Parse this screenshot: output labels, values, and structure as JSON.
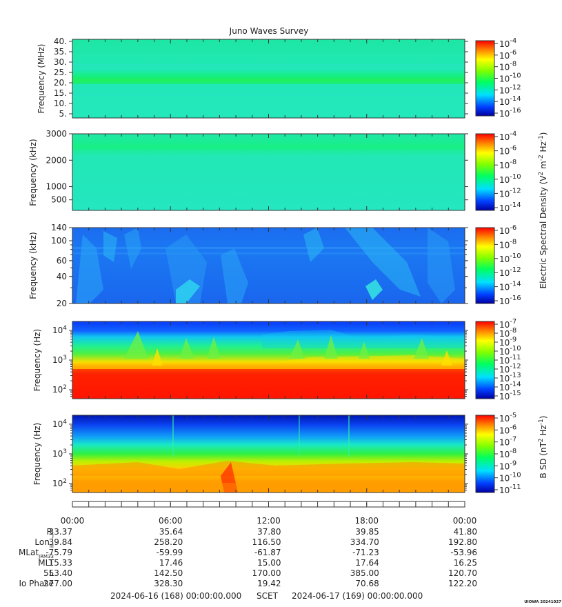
{
  "title": "Juno Waves Survey",
  "panels": [
    {
      "id": "p1",
      "ylabel": "Frequency (MHz)",
      "yscale": "linear",
      "ylim": [
        3,
        41
      ],
      "ticks": [
        "40.",
        "35.",
        "30.",
        "25.",
        "20.",
        "15.",
        "10.",
        "5."
      ],
      "tick_values": [
        40,
        35,
        30,
        25,
        20,
        15,
        10,
        5
      ],
      "cbar_ticks": [
        "-4",
        "-6",
        "-8",
        "-10",
        "-12",
        "-14",
        "-16"
      ]
    },
    {
      "id": "p2",
      "ylabel": "Frequency (kHz)",
      "yscale": "linear",
      "ylim": [
        100,
        3000
      ],
      "ticks": [
        "3000",
        "2000",
        "1000",
        "500"
      ],
      "tick_values": [
        3000,
        2000,
        1000,
        500
      ],
      "cbar_ticks": [
        "-4",
        "-6",
        "-8",
        "-10",
        "-12",
        "-14"
      ]
    },
    {
      "id": "p3",
      "ylabel": "Frequency (kHz)",
      "yscale": "log",
      "ylim": [
        20,
        140
      ],
      "ticks": [
        "140",
        "100",
        "60",
        "40",
        "20"
      ],
      "tick_values": [
        140,
        100,
        60,
        40,
        20
      ],
      "cbar_ticks": [
        "-6",
        "-8",
        "-10",
        "-12",
        "-14",
        "-16"
      ]
    },
    {
      "id": "p4",
      "ylabel": "Frequency (Hz)",
      "yscale": "log",
      "ylim": [
        50,
        20000
      ],
      "ticks": [
        "4",
        "3",
        "2"
      ],
      "tick_values": [
        10000,
        1000,
        100
      ],
      "cbar_ticks": [
        "-7",
        "-8",
        "-9",
        "-10",
        "-11",
        "-12",
        "-13",
        "-14",
        "-15"
      ]
    },
    {
      "id": "p5",
      "ylabel": "Frequency (Hz)",
      "yscale": "log",
      "ylim": [
        50,
        20000
      ],
      "ticks": [
        "4",
        "3",
        "2"
      ],
      "tick_values": [
        10000,
        1000,
        100
      ],
      "cbar_ticks": [
        "-5",
        "-6",
        "-7",
        "-8",
        "-9",
        "-10",
        "-11"
      ]
    }
  ],
  "tick_base": "10",
  "cbar_base": "10",
  "cbar_label_e": "Electric Spectral Density (V",
  "cbar_label_e_rest": " m",
  "cbar_label_e_hz": " Hz",
  "cbar_label_e_end": ")",
  "cbar_label_b": "B SD (nT",
  "cbar_label_b_hz": " Hz",
  "cbar_label_b_end": ")",
  "sup_2": "2",
  "sup_neg2": "-2",
  "sup_neg1": "-1",
  "time_labels": [
    "00:00",
    "06:00",
    "12:00",
    "18:00",
    "00:00"
  ],
  "ephemeris": {
    "labels": [
      "R",
      "Lon",
      "MLat",
      "MLT",
      "L",
      "Io Phase"
    ],
    "subs": [
      "J",
      "III",
      "JRM33",
      "",
      "",
      ""
    ],
    "rows": [
      [
        "33.37",
        "35.64",
        "37.80",
        "39.85",
        "41.80"
      ],
      [
        "39.84",
        "258.20",
        "116.50",
        "334.70",
        "192.80"
      ],
      [
        "-75.79",
        "-59.99",
        "-61.87",
        "-71.23",
        "-53.96"
      ],
      [
        "15.33",
        "17.46",
        "15.00",
        "17.64",
        "16.25"
      ],
      [
        "553.40",
        "142.50",
        "170.00",
        "385.00",
        "120.70"
      ],
      [
        "277.00",
        "328.30",
        "19.42",
        "70.68",
        "122.20"
      ]
    ]
  },
  "footer": {
    "start": "2024-06-16 (168) 00:00:00.000",
    "mid": "SCET",
    "end": "2024-06-17 (169) 00:00:00.000"
  },
  "credit": "UIOWA 20241027",
  "chart_data": {
    "type": "heatmap",
    "title": "Juno Waves Survey",
    "x_range": [
      "2024-06-16 00:00",
      "2024-06-17 00:00"
    ],
    "colormap": "rainbow (blue to red)",
    "series": [
      {
        "panel": 1,
        "ylabel": "Frequency (MHz)",
        "yrange": [
          3,
          41
        ],
        "cbar_range_exp": [
          -16,
          -4
        ]
      },
      {
        "panel": 2,
        "ylabel": "Frequency (kHz)",
        "yrange": [
          100,
          3000
        ],
        "cbar_range_exp": [
          -14,
          -4
        ]
      },
      {
        "panel": 3,
        "ylabel": "Frequency (kHz)",
        "yrange": [
          20,
          140
        ],
        "cbar_range_exp": [
          -16,
          -6
        ]
      },
      {
        "panel": 4,
        "ylabel": "Frequency (Hz)",
        "yrange": [
          50,
          20000
        ],
        "cbar_range_exp": [
          -15,
          -7
        ]
      },
      {
        "panel": 5,
        "ylabel": "Frequency (Hz)",
        "yrange": [
          50,
          20000
        ],
        "cbar_range_exp": [
          -11,
          -5
        ]
      }
    ]
  }
}
